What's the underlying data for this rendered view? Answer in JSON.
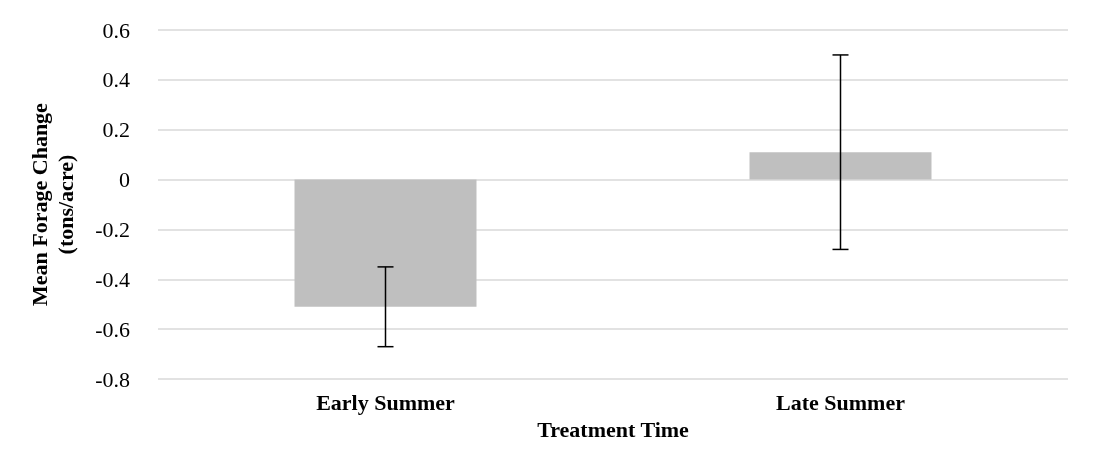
{
  "chart_data": {
    "type": "bar",
    "xlabel": "Treatment Time",
    "ylabel": "Mean Forage Change\n(tons/acre)",
    "categories": [
      "Early Summer",
      "Late Summer"
    ],
    "values": [
      -0.51,
      0.11
    ],
    "errors": [
      0.16,
      0.39
    ],
    "color": "#bfbfbf",
    "ylim": [
      -0.8,
      0.6
    ],
    "yticks": [
      -0.8,
      -0.6,
      -0.4,
      -0.2,
      0,
      0.2,
      0.4,
      0.6
    ],
    "grid": "y"
  }
}
